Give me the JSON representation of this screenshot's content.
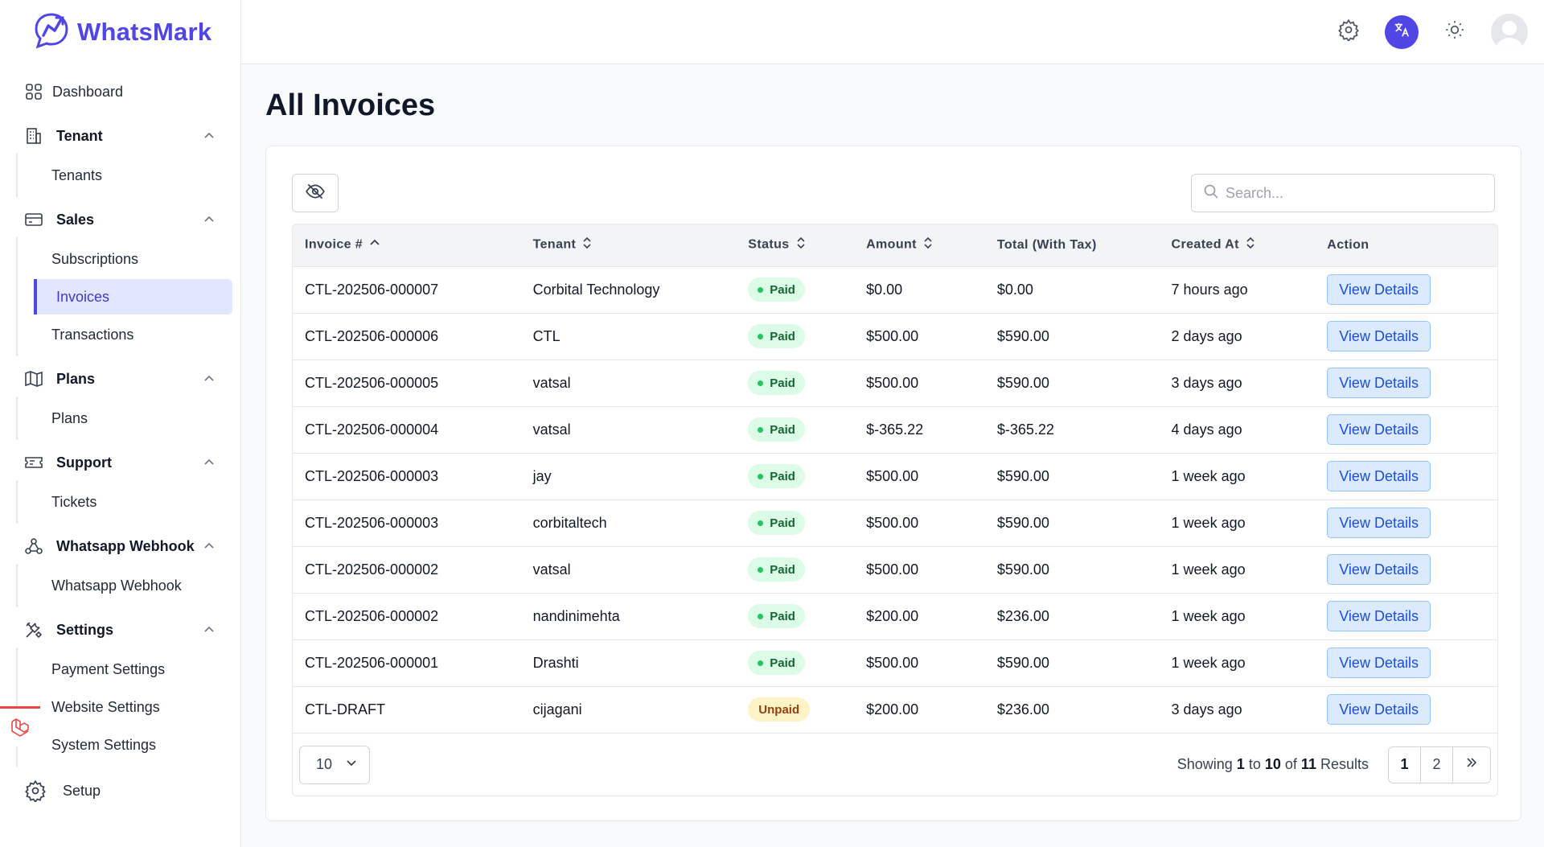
{
  "brand": {
    "name": "WhatsMark",
    "color": "#4f46e5"
  },
  "sidebar": {
    "dashboard": "Dashboard",
    "groups": [
      {
        "label": "Tenant",
        "icon": "building-icon",
        "items": [
          "Tenants"
        ]
      },
      {
        "label": "Sales",
        "icon": "credit-card-icon",
        "items": [
          "Subscriptions",
          "Invoices",
          "Transactions"
        ],
        "active": "Invoices"
      },
      {
        "label": "Plans",
        "icon": "map-icon",
        "items": [
          "Plans"
        ]
      },
      {
        "label": "Support",
        "icon": "ticket-icon",
        "items": [
          "Tickets"
        ]
      },
      {
        "label": "Whatsapp Webhook",
        "icon": "webhook-icon",
        "items": [
          "Whatsapp Webhook"
        ]
      },
      {
        "label": "Settings",
        "icon": "tools-icon",
        "items": [
          "Payment Settings",
          "Website Settings",
          "System Settings"
        ]
      }
    ],
    "setup": "Setup"
  },
  "page": {
    "title": "All Invoices"
  },
  "search": {
    "placeholder": "Search..."
  },
  "table": {
    "columns": [
      "Invoice #",
      "Tenant",
      "Status",
      "Amount",
      "Total (With Tax)",
      "Created At",
      "Action"
    ],
    "rows": [
      {
        "invoice": "CTL-202506-000007",
        "tenant": "Corbital Technology",
        "status": "Paid",
        "amount": "$0.00",
        "total": "$0.00",
        "created": "7 hours ago",
        "action": "View Details"
      },
      {
        "invoice": "CTL-202506-000006",
        "tenant": "CTL",
        "status": "Paid",
        "amount": "$500.00",
        "total": "$590.00",
        "created": "2 days ago",
        "action": "View Details"
      },
      {
        "invoice": "CTL-202506-000005",
        "tenant": "vatsal",
        "status": "Paid",
        "amount": "$500.00",
        "total": "$590.00",
        "created": "3 days ago",
        "action": "View Details"
      },
      {
        "invoice": "CTL-202506-000004",
        "tenant": "vatsal",
        "status": "Paid",
        "amount": "$-365.22",
        "total": "$-365.22",
        "created": "4 days ago",
        "action": "View Details"
      },
      {
        "invoice": "CTL-202506-000003",
        "tenant": "jay",
        "status": "Paid",
        "amount": "$500.00",
        "total": "$590.00",
        "created": "1 week ago",
        "action": "View Details"
      },
      {
        "invoice": "CTL-202506-000003",
        "tenant": "corbitaltech",
        "status": "Paid",
        "amount": "$500.00",
        "total": "$590.00",
        "created": "1 week ago",
        "action": "View Details"
      },
      {
        "invoice": "CTL-202506-000002",
        "tenant": "vatsal",
        "status": "Paid",
        "amount": "$500.00",
        "total": "$590.00",
        "created": "1 week ago",
        "action": "View Details"
      },
      {
        "invoice": "CTL-202506-000002",
        "tenant": "nandinimehta",
        "status": "Paid",
        "amount": "$200.00",
        "total": "$236.00",
        "created": "1 week ago",
        "action": "View Details"
      },
      {
        "invoice": "CTL-202506-000001",
        "tenant": "Drashti",
        "status": "Paid",
        "amount": "$500.00",
        "total": "$590.00",
        "created": "1 week ago",
        "action": "View Details"
      },
      {
        "invoice": "CTL-DRAFT",
        "tenant": "cijagani",
        "status": "Unpaid",
        "amount": "$200.00",
        "total": "$236.00",
        "created": "3 days ago",
        "action": "View Details"
      }
    ]
  },
  "footer": {
    "per_page": "10",
    "showing_prefix": "Showing",
    "from": "1",
    "to_word": "to",
    "to": "10",
    "of_word": "of",
    "total": "11",
    "results_word": "Results",
    "pages": [
      "1",
      "2"
    ],
    "current_page": "1"
  }
}
